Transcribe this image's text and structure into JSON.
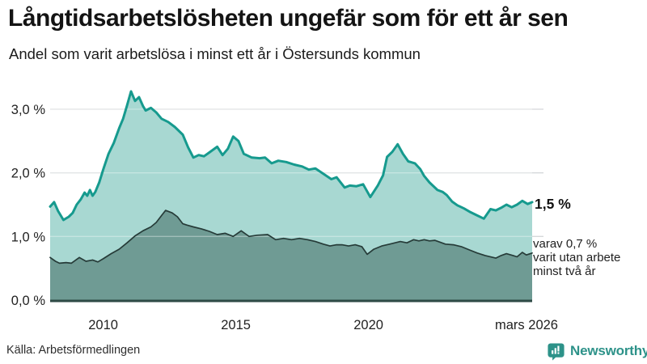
{
  "header": {
    "title": "Långtidsarbetslösheten ungefär som för ett år sen",
    "subtitle": "Andel som varit arbetslösa i minst ett år i Östersunds kommun"
  },
  "annotations": {
    "latest_value_label": "1,5 %",
    "breakdown_lines": [
      "varav 0,7 %",
      "varit utan arbete",
      "minst två år"
    ]
  },
  "footer": {
    "source": "Källa: Arbetsförmedlingen",
    "brand": "Newsworthy"
  },
  "colors": {
    "line_total": "#169a8e",
    "fill_total": "#a8d8d2",
    "line_two_years": "#263b38",
    "fill_two_years": "#6f9b94",
    "axis_line": "#2e4a45",
    "gridline": "#d5d8da",
    "grid_overlay": "rgba(255,255,255,0.35)",
    "tick_text": "#222222",
    "brand_teal": "#2d9289"
  },
  "chart_data": {
    "type": "area",
    "title": "Långtidsarbetslösheten ungefär som för ett år sen",
    "subtitle": "Andel som varit arbetslösa i minst ett år i Östersunds kommun",
    "x_unit": "decimal_year",
    "xlim": [
      2008.0,
      2026.25
    ],
    "ylim": [
      0,
      3.5
    ],
    "grid": "horizontal",
    "legend_position": "none (direct labels at line ends)",
    "y_gridlines": [
      1.0,
      2.0,
      3.0
    ],
    "y_ticks": [
      {
        "label": "3,0 %",
        "value": 3.0
      },
      {
        "label": "2,0 %",
        "value": 2.0
      },
      {
        "label": "1,0 %",
        "value": 1.0
      },
      {
        "label": "0,0 %",
        "value": 0.0
      }
    ],
    "x_ticks": [
      {
        "label": "2010",
        "x": 2010
      },
      {
        "label": "2015",
        "x": 2015
      },
      {
        "label": "2020",
        "x": 2020
      },
      {
        "label": "mars 2026",
        "x": 2026.17
      }
    ],
    "series": [
      {
        "name": "Arbetslösa minst ett år",
        "latest_label": "1,5 %",
        "latest_value": 1.5,
        "line_color": "#169a8e",
        "fill_color": "#a8d8d2",
        "line_width": 3,
        "points": [
          [
            2008.0,
            1.47
          ],
          [
            2008.15,
            1.54
          ],
          [
            2008.3,
            1.4
          ],
          [
            2008.5,
            1.26
          ],
          [
            2008.7,
            1.31
          ],
          [
            2008.85,
            1.37
          ],
          [
            2009.0,
            1.5
          ],
          [
            2009.15,
            1.58
          ],
          [
            2009.3,
            1.69
          ],
          [
            2009.4,
            1.64
          ],
          [
            2009.5,
            1.73
          ],
          [
            2009.6,
            1.64
          ],
          [
            2009.7,
            1.7
          ],
          [
            2009.85,
            1.85
          ],
          [
            2010.0,
            2.05
          ],
          [
            2010.2,
            2.3
          ],
          [
            2010.4,
            2.47
          ],
          [
            2010.6,
            2.7
          ],
          [
            2010.75,
            2.85
          ],
          [
            2010.9,
            3.06
          ],
          [
            2011.05,
            3.28
          ],
          [
            2011.2,
            3.13
          ],
          [
            2011.35,
            3.19
          ],
          [
            2011.5,
            3.05
          ],
          [
            2011.6,
            2.98
          ],
          [
            2011.8,
            3.02
          ],
          [
            2012.0,
            2.95
          ],
          [
            2012.2,
            2.85
          ],
          [
            2012.45,
            2.8
          ],
          [
            2012.7,
            2.72
          ],
          [
            2013.0,
            2.6
          ],
          [
            2013.2,
            2.4
          ],
          [
            2013.4,
            2.24
          ],
          [
            2013.6,
            2.28
          ],
          [
            2013.8,
            2.26
          ],
          [
            2014.0,
            2.32
          ],
          [
            2014.3,
            2.41
          ],
          [
            2014.5,
            2.28
          ],
          [
            2014.7,
            2.38
          ],
          [
            2014.9,
            2.57
          ],
          [
            2015.1,
            2.5
          ],
          [
            2015.3,
            2.3
          ],
          [
            2015.6,
            2.24
          ],
          [
            2015.9,
            2.23
          ],
          [
            2016.1,
            2.24
          ],
          [
            2016.35,
            2.15
          ],
          [
            2016.6,
            2.19
          ],
          [
            2016.9,
            2.17
          ],
          [
            2017.2,
            2.13
          ],
          [
            2017.5,
            2.1
          ],
          [
            2017.75,
            2.05
          ],
          [
            2018.0,
            2.07
          ],
          [
            2018.25,
            2.0
          ],
          [
            2018.6,
            1.9
          ],
          [
            2018.8,
            1.93
          ],
          [
            2019.1,
            1.77
          ],
          [
            2019.3,
            1.8
          ],
          [
            2019.55,
            1.79
          ],
          [
            2019.8,
            1.82
          ],
          [
            2020.07,
            1.62
          ],
          [
            2020.35,
            1.8
          ],
          [
            2020.55,
            1.96
          ],
          [
            2020.7,
            2.25
          ],
          [
            2020.9,
            2.33
          ],
          [
            2021.1,
            2.45
          ],
          [
            2021.3,
            2.3
          ],
          [
            2021.5,
            2.18
          ],
          [
            2021.75,
            2.15
          ],
          [
            2021.95,
            2.06
          ],
          [
            2022.1,
            1.95
          ],
          [
            2022.3,
            1.85
          ],
          [
            2022.6,
            1.73
          ],
          [
            2022.8,
            1.7
          ],
          [
            2022.95,
            1.65
          ],
          [
            2023.15,
            1.55
          ],
          [
            2023.35,
            1.49
          ],
          [
            2023.6,
            1.44
          ],
          [
            2023.85,
            1.38
          ],
          [
            2024.1,
            1.33
          ],
          [
            2024.35,
            1.28
          ],
          [
            2024.6,
            1.43
          ],
          [
            2024.8,
            1.41
          ],
          [
            2025.0,
            1.45
          ],
          [
            2025.2,
            1.5
          ],
          [
            2025.4,
            1.46
          ],
          [
            2025.6,
            1.5
          ],
          [
            2025.8,
            1.56
          ],
          [
            2026.0,
            1.51
          ],
          [
            2026.17,
            1.54
          ]
        ]
      },
      {
        "name": "Varav utan arbete minst två år",
        "latest_label": "varav 0,7 %",
        "latest_value": 0.7,
        "line_color": "#263b38",
        "fill_color": "#6f9b94",
        "line_width": 1.7,
        "points": [
          [
            2008.0,
            0.67
          ],
          [
            2008.2,
            0.61
          ],
          [
            2008.35,
            0.58
          ],
          [
            2008.6,
            0.59
          ],
          [
            2008.8,
            0.58
          ],
          [
            2009.1,
            0.67
          ],
          [
            2009.35,
            0.61
          ],
          [
            2009.6,
            0.63
          ],
          [
            2009.8,
            0.6
          ],
          [
            2010.0,
            0.65
          ],
          [
            2010.3,
            0.73
          ],
          [
            2010.6,
            0.8
          ],
          [
            2010.9,
            0.9
          ],
          [
            2011.2,
            1.01
          ],
          [
            2011.5,
            1.09
          ],
          [
            2011.8,
            1.15
          ],
          [
            2012.0,
            1.22
          ],
          [
            2012.2,
            1.33
          ],
          [
            2012.35,
            1.41
          ],
          [
            2012.6,
            1.37
          ],
          [
            2012.8,
            1.31
          ],
          [
            2013.0,
            1.2
          ],
          [
            2013.15,
            1.18
          ],
          [
            2013.4,
            1.15
          ],
          [
            2013.7,
            1.12
          ],
          [
            2014.0,
            1.08
          ],
          [
            2014.3,
            1.03
          ],
          [
            2014.6,
            1.05
          ],
          [
            2014.9,
            1.0
          ],
          [
            2015.2,
            1.09
          ],
          [
            2015.5,
            1.0
          ],
          [
            2015.8,
            1.02
          ],
          [
            2016.2,
            1.03
          ],
          [
            2016.5,
            0.95
          ],
          [
            2016.8,
            0.97
          ],
          [
            2017.1,
            0.95
          ],
          [
            2017.4,
            0.97
          ],
          [
            2017.7,
            0.95
          ],
          [
            2018.0,
            0.92
          ],
          [
            2018.3,
            0.88
          ],
          [
            2018.55,
            0.85
          ],
          [
            2018.8,
            0.87
          ],
          [
            2019.0,
            0.87
          ],
          [
            2019.25,
            0.85
          ],
          [
            2019.5,
            0.87
          ],
          [
            2019.75,
            0.84
          ],
          [
            2019.95,
            0.72
          ],
          [
            2020.2,
            0.8
          ],
          [
            2020.5,
            0.85
          ],
          [
            2020.8,
            0.88
          ],
          [
            2021.0,
            0.9
          ],
          [
            2021.2,
            0.92
          ],
          [
            2021.45,
            0.9
          ],
          [
            2021.7,
            0.95
          ],
          [
            2021.9,
            0.93
          ],
          [
            2022.1,
            0.95
          ],
          [
            2022.3,
            0.93
          ],
          [
            2022.5,
            0.94
          ],
          [
            2022.7,
            0.91
          ],
          [
            2022.9,
            0.88
          ],
          [
            2023.2,
            0.87
          ],
          [
            2023.5,
            0.84
          ],
          [
            2023.8,
            0.79
          ],
          [
            2024.1,
            0.74
          ],
          [
            2024.4,
            0.7
          ],
          [
            2024.8,
            0.66
          ],
          [
            2025.0,
            0.7
          ],
          [
            2025.2,
            0.73
          ],
          [
            2025.45,
            0.7
          ],
          [
            2025.6,
            0.68
          ],
          [
            2025.8,
            0.75
          ],
          [
            2025.95,
            0.71
          ],
          [
            2026.17,
            0.74
          ]
        ]
      }
    ]
  }
}
